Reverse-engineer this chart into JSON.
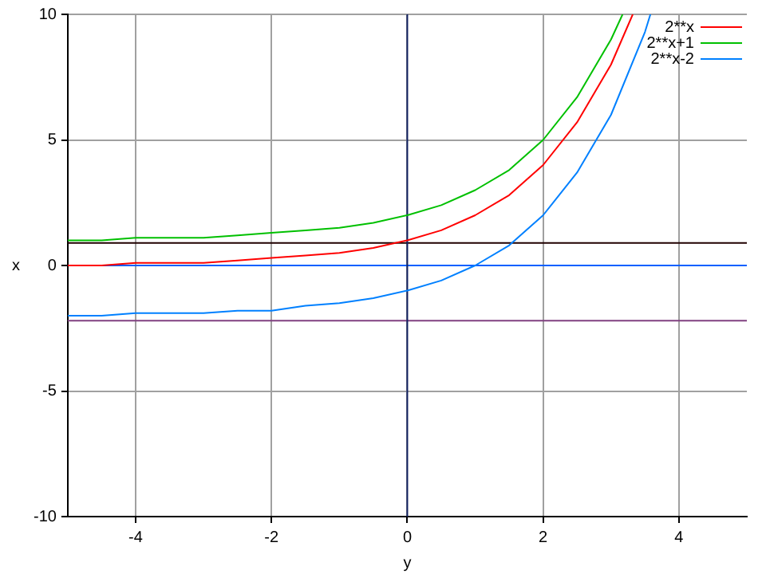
{
  "chart_data": {
    "type": "line",
    "xlabel": "y",
    "ylabel": "x",
    "xlim": [
      -5,
      5
    ],
    "ylim": [
      -10,
      10
    ],
    "xticks": [
      -4,
      -2,
      0,
      2,
      4
    ],
    "yticks": [
      -10,
      -5,
      0,
      5,
      10
    ],
    "grid": true,
    "legend": "top right",
    "marker": "none",
    "line_style": "solid",
    "series": [
      {
        "name": "2**x",
        "color": "#ff0000",
        "x": [
          -5,
          -4.5,
          -4,
          -3.5,
          -3,
          -2.5,
          -2,
          -1.5,
          -1,
          -0.5,
          0,
          0.5,
          1,
          1.5,
          2,
          2.5,
          3,
          3.32
        ],
        "values": [
          0.0,
          0.0,
          0.1,
          0.1,
          0.1,
          0.2,
          0.3,
          0.4,
          0.5,
          0.7,
          1.0,
          1.4,
          2.0,
          2.8,
          4.0,
          5.7,
          8.0,
          10
        ]
      },
      {
        "name": "2**x+1",
        "color": "#00c000",
        "x": [
          -5,
          -4.5,
          -4,
          -3.5,
          -3,
          -2.5,
          -2,
          -1.5,
          -1,
          -0.5,
          0,
          0.5,
          1,
          1.5,
          2,
          2.5,
          3,
          3.17
        ],
        "values": [
          1.0,
          1.0,
          1.1,
          1.1,
          1.1,
          1.2,
          1.3,
          1.4,
          1.5,
          1.7,
          2.0,
          2.4,
          3.0,
          3.8,
          5.0,
          6.7,
          9.0,
          10
        ]
      },
      {
        "name": "2**x-2",
        "color": "#0080ff",
        "x": [
          -5,
          -4.5,
          -4,
          -3.5,
          -3,
          -2.5,
          -2,
          -1.5,
          -1,
          -0.5,
          0,
          0.5,
          1,
          1.5,
          2,
          2.5,
          3,
          3.5,
          3.58
        ],
        "values": [
          -2.0,
          -2.0,
          -1.9,
          -1.9,
          -1.9,
          -1.8,
          -1.8,
          -1.6,
          -1.5,
          -1.3,
          -1.0,
          -0.6,
          0.0,
          0.8,
          2.0,
          3.7,
          6.0,
          9.3,
          10
        ]
      }
    ],
    "ref_lines": [
      {
        "axis": "y",
        "value": 0.9,
        "color": "#200000"
      },
      {
        "axis": "y",
        "value": 0,
        "color": "#0060ff"
      },
      {
        "axis": "y",
        "value": -2.2,
        "color": "#804080"
      },
      {
        "axis": "x",
        "value": 0,
        "color": "#102060"
      }
    ]
  }
}
